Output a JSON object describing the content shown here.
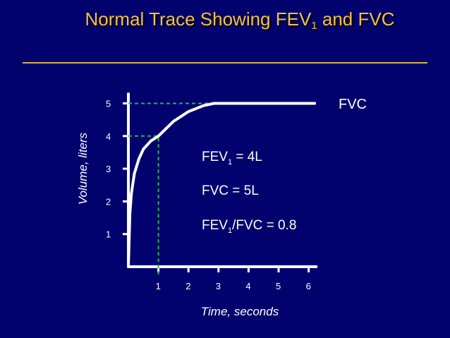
{
  "slide": {
    "title_prefix": "Normal Trace Showing FEV",
    "title_sub": "1",
    "title_suffix": " and FVC"
  },
  "colors": {
    "background": "#02026e",
    "title": "#f2c14a",
    "rule": "#d9b24a",
    "curve": "#ffffff",
    "axis": "#ffffff",
    "guide": "#2fb24a",
    "text": "#ffffff"
  },
  "chart_data": {
    "type": "line",
    "title": "Normal Trace Showing FEV1 and FVC",
    "xlabel": "Time, seconds",
    "ylabel": "Volume, liters",
    "xlim": [
      0,
      6
    ],
    "ylim": [
      0,
      5
    ],
    "x_ticks": [
      "1",
      "2",
      "3",
      "4",
      "5",
      "6"
    ],
    "y_ticks": [
      "1",
      "2",
      "3",
      "4",
      "5"
    ],
    "grid": false,
    "series": [
      {
        "name": "FVC",
        "x": [
          0,
          0.05,
          0.1,
          0.2,
          0.35,
          0.5,
          0.75,
          1,
          1.5,
          2,
          2.5,
          2.85,
          3,
          4,
          5,
          6,
          6.2
        ],
        "y": [
          0,
          1.6,
          2.25,
          2.85,
          3.3,
          3.6,
          3.85,
          4.0,
          4.45,
          4.75,
          4.93,
          5.0,
          5.0,
          5.0,
          5.0,
          5.0,
          5.0
        ]
      }
    ],
    "guides": [
      {
        "label": "FEV1",
        "x": 1,
        "y": 4
      },
      {
        "label": "FVC",
        "x": 2.85,
        "y": 5
      }
    ],
    "series_label": "FVC",
    "annotations": [
      {
        "main": "FEV",
        "sub": "1",
        "rest": " = 4L"
      },
      {
        "main": "FVC  = 5L",
        "sub": "",
        "rest": ""
      },
      {
        "main": "FEV",
        "sub": "1",
        "rest": "/FVC = 0.8"
      }
    ]
  }
}
